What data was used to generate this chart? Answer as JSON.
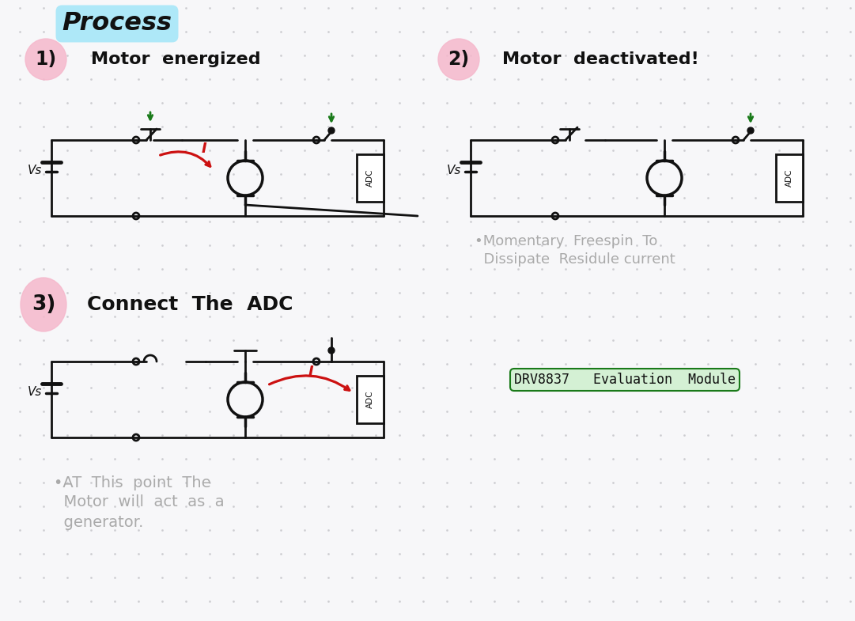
{
  "bg_color": "#f7f7f9",
  "dot_color": "#c8c8cc",
  "title": "Process",
  "title_bg": "#aee8f8",
  "step1_badge_color": "#f5b8cc",
  "step2_badge_color": "#f5b8cc",
  "step3_badge_color": "#f5b8cc",
  "note2_line1": "•Momentary  Freespin  To",
  "note2_line2": "  Dissipate  Residule current",
  "note3_line1": "•AT  This  point  The",
  "note3_line2": "  Motor  will  act  as  a",
  "note3_line3": "  generator.",
  "drv_text": "DRV8837   Evaluation  Module",
  "drv_bg": "#d4f0d4",
  "black": "#111111",
  "red": "#cc1111",
  "green": "#1a7a1a",
  "gray_text": "#aaaaaa",
  "lw": 2.0
}
